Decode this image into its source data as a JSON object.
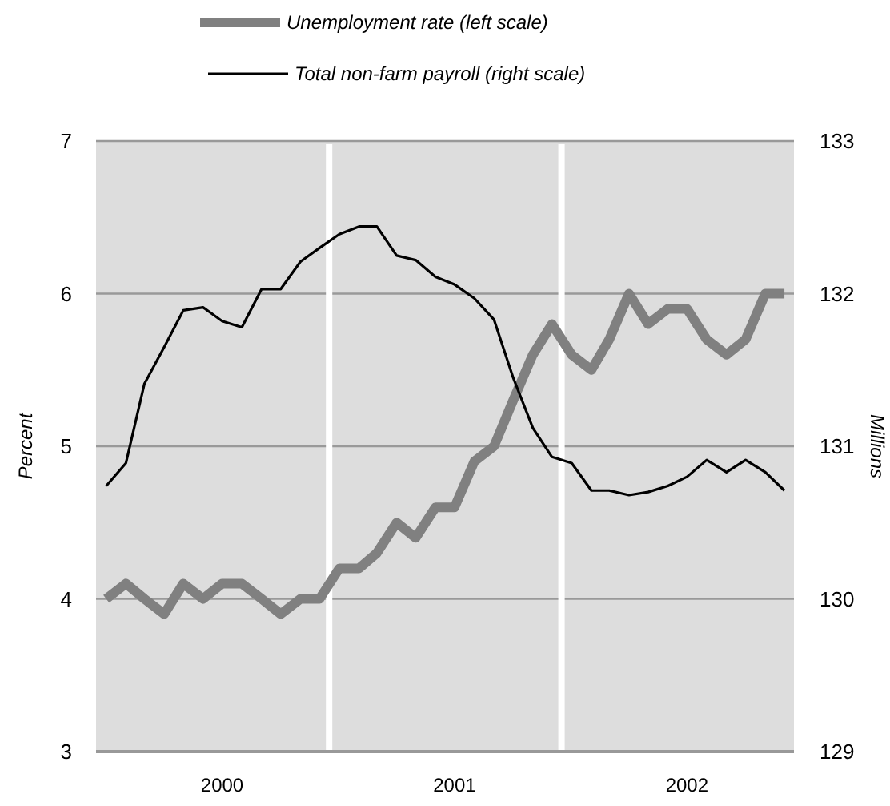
{
  "chart_data": {
    "type": "line",
    "ylabel": "Percent",
    "y2label": "Millions",
    "x": [
      "2000-01",
      "2000-02",
      "2000-03",
      "2000-04",
      "2000-05",
      "2000-06",
      "2000-07",
      "2000-08",
      "2000-09",
      "2000-10",
      "2000-11",
      "2000-12",
      "2001-01",
      "2001-02",
      "2001-03",
      "2001-04",
      "2001-05",
      "2001-06",
      "2001-07",
      "2001-08",
      "2001-09",
      "2001-10",
      "2001-11",
      "2001-12",
      "2002-01",
      "2002-02",
      "2002-03",
      "2002-04",
      "2002-05",
      "2002-06",
      "2002-07",
      "2002-08",
      "2002-09",
      "2002-10",
      "2002-11",
      "2002-12"
    ],
    "xlim": [
      "1999-12-16",
      "2002-12-16"
    ],
    "xticks": [
      {
        "value": "2000-07-01",
        "label": "2000"
      },
      {
        "value": "2001-07-01",
        "label": "2001"
      },
      {
        "value": "2002-07-01",
        "label": "2002"
      }
    ],
    "ylim": [
      3,
      7
    ],
    "yticks": [
      3,
      4,
      5,
      6,
      7
    ],
    "y2lim": [
      129,
      133
    ],
    "y2ticks": [
      129,
      130,
      131,
      132,
      133
    ],
    "grid": "y",
    "legend": "top",
    "line_style": "solid",
    "marker": "none",
    "ref_lines": [
      {
        "axis": "x",
        "value": "2000-12-16",
        "color": "#ffffff"
      },
      {
        "axis": "x",
        "value": "2001-12-16",
        "color": "#ffffff"
      }
    ],
    "series": [
      {
        "name": "Unemployment rate (left scale)",
        "color": "#808080",
        "values": [
          4.0,
          4.1,
          4.0,
          3.9,
          4.1,
          4.0,
          4.1,
          4.1,
          4.0,
          3.9,
          4.0,
          4.0,
          4.2,
          4.2,
          4.3,
          4.5,
          4.4,
          4.6,
          4.6,
          4.9,
          5.0,
          5.3,
          5.6,
          5.8,
          5.6,
          5.5,
          5.7,
          6.0,
          5.8,
          5.9,
          5.9,
          5.7,
          5.6,
          5.7,
          6.0,
          6.0
        ]
      },
      {
        "name": "Total non-farm payroll (right scale)",
        "color": "#000000",
        "axis": "y2",
        "values": [
          130.74,
          130.89,
          131.41,
          131.65,
          131.89,
          131.91,
          131.82,
          131.78,
          132.03,
          132.03,
          132.21,
          132.3,
          132.39,
          132.44,
          132.44,
          132.25,
          132.22,
          132.11,
          132.06,
          131.97,
          131.83,
          131.45,
          131.12,
          130.93,
          130.89,
          130.71,
          130.71,
          130.68,
          130.7,
          130.74,
          130.8,
          130.91,
          130.83,
          130.91,
          130.83,
          130.71
        ]
      }
    ]
  }
}
